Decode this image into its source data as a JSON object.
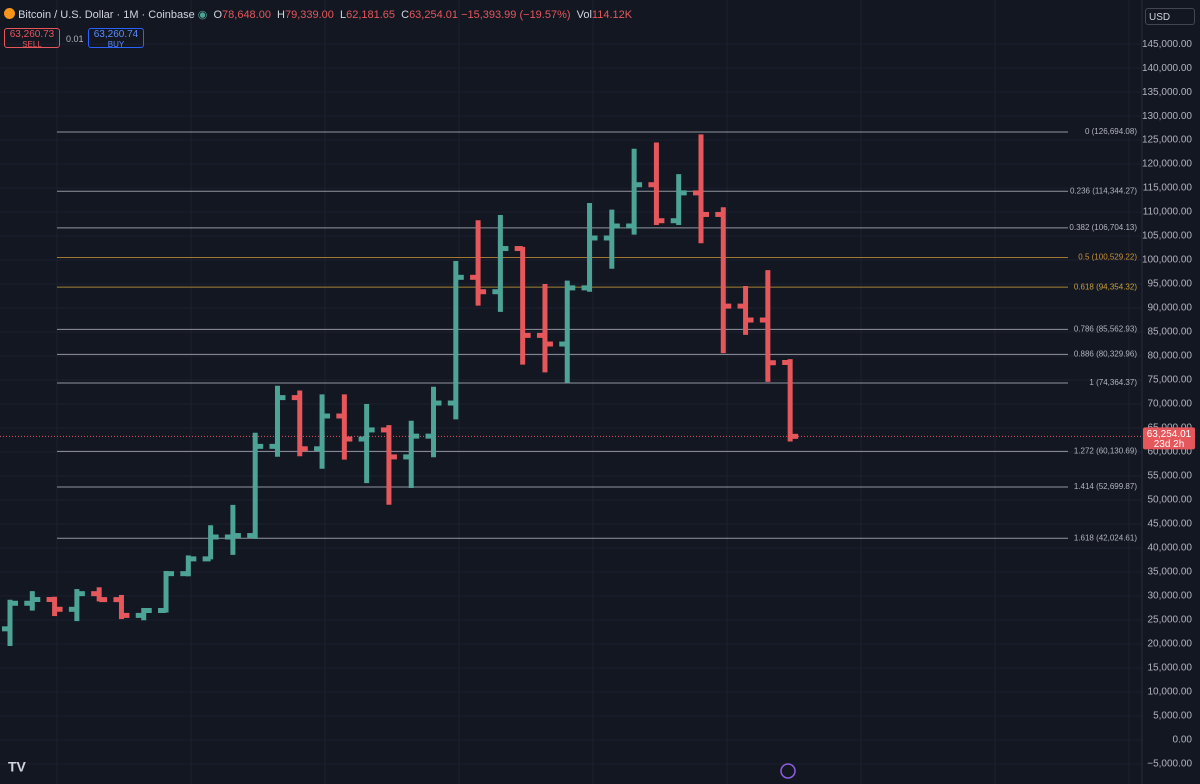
{
  "header": {
    "symbol": "Bitcoin / U.S. Dollar · 1M · Coinbase",
    "o_label": "O",
    "o": "78,648.00",
    "h_label": "H",
    "h": "79,339.00",
    "l_label": "L",
    "l": "62,181.65",
    "c_label": "C",
    "c": "63,254.01",
    "change": "−15,393.99 (−19.57%)",
    "vol_label": "Vol",
    "vol": "114.12K",
    "sell_price": "63,260.73",
    "sell": "SELL",
    "spread": "0.01",
    "buy_price": "63,260.74",
    "buy": "BUY",
    "currency": "USD"
  },
  "chart_data": {
    "type": "ohlc",
    "up_color": "#4ea397",
    "down_color": "#e5575b",
    "open": [
      23140,
      28470,
      29250,
      27210,
      30470,
      29230,
      25940,
      26960,
      34640,
      37720,
      42280,
      42580,
      61170,
      71330,
      60660,
      67500,
      62700,
      64600,
      58970,
      63300,
      70200,
      96400,
      93400,
      102400,
      84300,
      82500,
      94200,
      104600,
      107100,
      115700,
      108200,
      114000,
      109500,
      90400,
      87500,
      78648
    ],
    "high": [
      29190,
      31000,
      29820,
      31430,
      31800,
      30200,
      27490,
      35200,
      38440,
      44730,
      48970,
      64000,
      73800,
      72800,
      72000,
      72000,
      70000,
      65600,
      66500,
      73600,
      99800,
      108300,
      109400,
      102750,
      95000,
      95700,
      111900,
      110500,
      123200,
      124500,
      117900,
      126200,
      111000,
      94600,
      97900,
      79339
    ],
    "low": [
      19570,
      26940,
      25800,
      24750,
      28860,
      25170,
      24920,
      26540,
      34090,
      37620,
      38550,
      41880,
      59000,
      59100,
      56500,
      58400,
      53500,
      49000,
      52500,
      58900,
      66800,
      90500,
      89200,
      78200,
      76600,
      74400,
      93400,
      98200,
      105300,
      107300,
      107300,
      103500,
      80600,
      84400,
      74600,
      62181.65
    ],
    "close": [
      28470,
      29250,
      27210,
      30470,
      29230,
      25940,
      26960,
      34640,
      37720,
      42280,
      42580,
      61170,
      71330,
      60660,
      67500,
      62700,
      64600,
      58970,
      63300,
      70200,
      96400,
      93400,
      102400,
      84300,
      82500,
      94200,
      104600,
      107100,
      115700,
      108200,
      114000,
      109500,
      90400,
      87500,
      78600,
      63254.01
    ],
    "last_price": 63254.01,
    "last_price_label": "63,254.01",
    "countdown": "23d 2h",
    "ylim": [
      -9200,
      154200
    ],
    "yticks": [
      {
        "value": -5000,
        "label": "−5,000.00"
      },
      {
        "value": 0,
        "label": "0.00"
      },
      {
        "value": 5000,
        "label": "5,000.00"
      },
      {
        "value": 10000,
        "label": "10,000.00"
      },
      {
        "value": 15000,
        "label": "15,000.00"
      },
      {
        "value": 20000,
        "label": "20,000.00"
      },
      {
        "value": 25000,
        "label": "25,000.00"
      },
      {
        "value": 30000,
        "label": "30,000.00"
      },
      {
        "value": 35000,
        "label": "35,000.00"
      },
      {
        "value": 40000,
        "label": "40,000.00"
      },
      {
        "value": 45000,
        "label": "45,000.00"
      },
      {
        "value": 50000,
        "label": "50,000.00"
      },
      {
        "value": 55000,
        "label": "55,000.00"
      },
      {
        "value": 60000,
        "label": "60,000.00"
      },
      {
        "value": 65000,
        "label": "65,000.00"
      },
      {
        "value": 70000,
        "label": "70,000.00"
      },
      {
        "value": 75000,
        "label": "75,000.00"
      },
      {
        "value": 80000,
        "label": "80,000.00"
      },
      {
        "value": 85000,
        "label": "85,000.00"
      },
      {
        "value": 90000,
        "label": "90,000.00"
      },
      {
        "value": 95000,
        "label": "95,000.00"
      },
      {
        "value": 100000,
        "label": "100,000.00"
      },
      {
        "value": 105000,
        "label": "105,000.00"
      },
      {
        "value": 110000,
        "label": "110,000.00"
      },
      {
        "value": 115000,
        "label": "115,000.00"
      },
      {
        "value": 120000,
        "label": "120,000.00"
      },
      {
        "value": 125000,
        "label": "125,000.00"
      },
      {
        "value": 130000,
        "label": "130,000.00"
      },
      {
        "value": 135000,
        "label": "135,000.00"
      },
      {
        "value": 140000,
        "label": "140,000.00"
      },
      {
        "value": 145000,
        "label": "145,000.00"
      }
    ],
    "fib": [
      {
        "value": 126694.08,
        "label": "0 (126,694.08)",
        "color": "#b2b5be"
      },
      {
        "value": 114344.27,
        "label": "0.236 (114,344.27)",
        "color": "#b2b5be"
      },
      {
        "value": 106704.13,
        "label": "0.382 (106,704.13)",
        "color": "#b2b5be"
      },
      {
        "value": 100529.22,
        "label": "0.5 (100,529.22)",
        "color": "#c8913a"
      },
      {
        "value": 94354.32,
        "label": "0.618 (94,354.32)",
        "color": "#c8a03a"
      },
      {
        "value": 85562.93,
        "label": "0.786 (85,562.93)",
        "color": "#b2b5be"
      },
      {
        "value": 80329.96,
        "label": "0.886 (80,329.96)",
        "color": "#b2b5be"
      },
      {
        "value": 74364.37,
        "label": "1 (74,364.37)",
        "color": "#b2b5be"
      },
      {
        "value": 60130.69,
        "label": "1.272 (60,130.69)",
        "color": "#b2b5be"
      },
      {
        "value": 52699.87,
        "label": "1.414 (52,699.87)",
        "color": "#b2b5be"
      },
      {
        "value": 42024.61,
        "label": "1.618 (42,024.61)",
        "color": "#b2b5be"
      }
    ]
  }
}
